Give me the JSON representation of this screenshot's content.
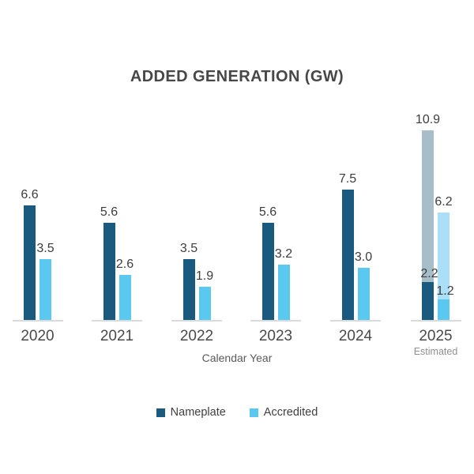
{
  "title": "ADDED GENERATION (GW)",
  "axis": {
    "xlabel": "Calendar Year"
  },
  "legend": {
    "items": [
      {
        "label": "Nameplate",
        "color": "#1A5A7F"
      },
      {
        "label": "Accredited",
        "color": "#5BC8F0"
      }
    ]
  },
  "colors": {
    "nameplate": "#1A5A7F",
    "accredited": "#5BC8F0",
    "nameplate_estimated": "#A7BEC9",
    "accredited_estimated": "#ABDFF8",
    "axis_line": "#DBDBDB",
    "title_text": "#474747",
    "value_text": "#3D3D3D",
    "year_text": "#4A4A4A",
    "estimated_text": "#8F8F8F"
  },
  "chart_data": {
    "type": "bar",
    "title": "ADDED GENERATION (GW)",
    "xlabel": "Calendar Year",
    "ylabel": "",
    "grid": false,
    "legend_position": "bottom",
    "categories": [
      "2020",
      "2021",
      "2022",
      "2023",
      "2024",
      "2025"
    ],
    "series": [
      {
        "name": "Nameplate",
        "values": [
          6.6,
          5.6,
          3.5,
          5.6,
          7.5,
          10.9
        ]
      },
      {
        "name": "Accredited",
        "values": [
          3.5,
          2.6,
          1.9,
          3.2,
          3.0,
          6.2
        ]
      }
    ],
    "groups": [
      {
        "year": "2020",
        "nameplate": {
          "total": "6.6"
        },
        "accredited": {
          "total": "3.5"
        }
      },
      {
        "year": "2021",
        "nameplate": {
          "total": "5.6"
        },
        "accredited": {
          "total": "2.6"
        }
      },
      {
        "year": "2022",
        "nameplate": {
          "total": "3.5"
        },
        "accredited": {
          "total": "1.9"
        }
      },
      {
        "year": "2023",
        "nameplate": {
          "total": "5.6"
        },
        "accredited": {
          "total": "3.2"
        }
      },
      {
        "year": "2024",
        "nameplate": {
          "total": "7.5"
        },
        "accredited": {
          "total": "3.0"
        }
      },
      {
        "year": "2025",
        "sublabel": "Estimated",
        "nameplate": {
          "total": "10.9",
          "actual": "2.2"
        },
        "accredited": {
          "total": "6.2",
          "actual": "1.2"
        }
      }
    ]
  }
}
